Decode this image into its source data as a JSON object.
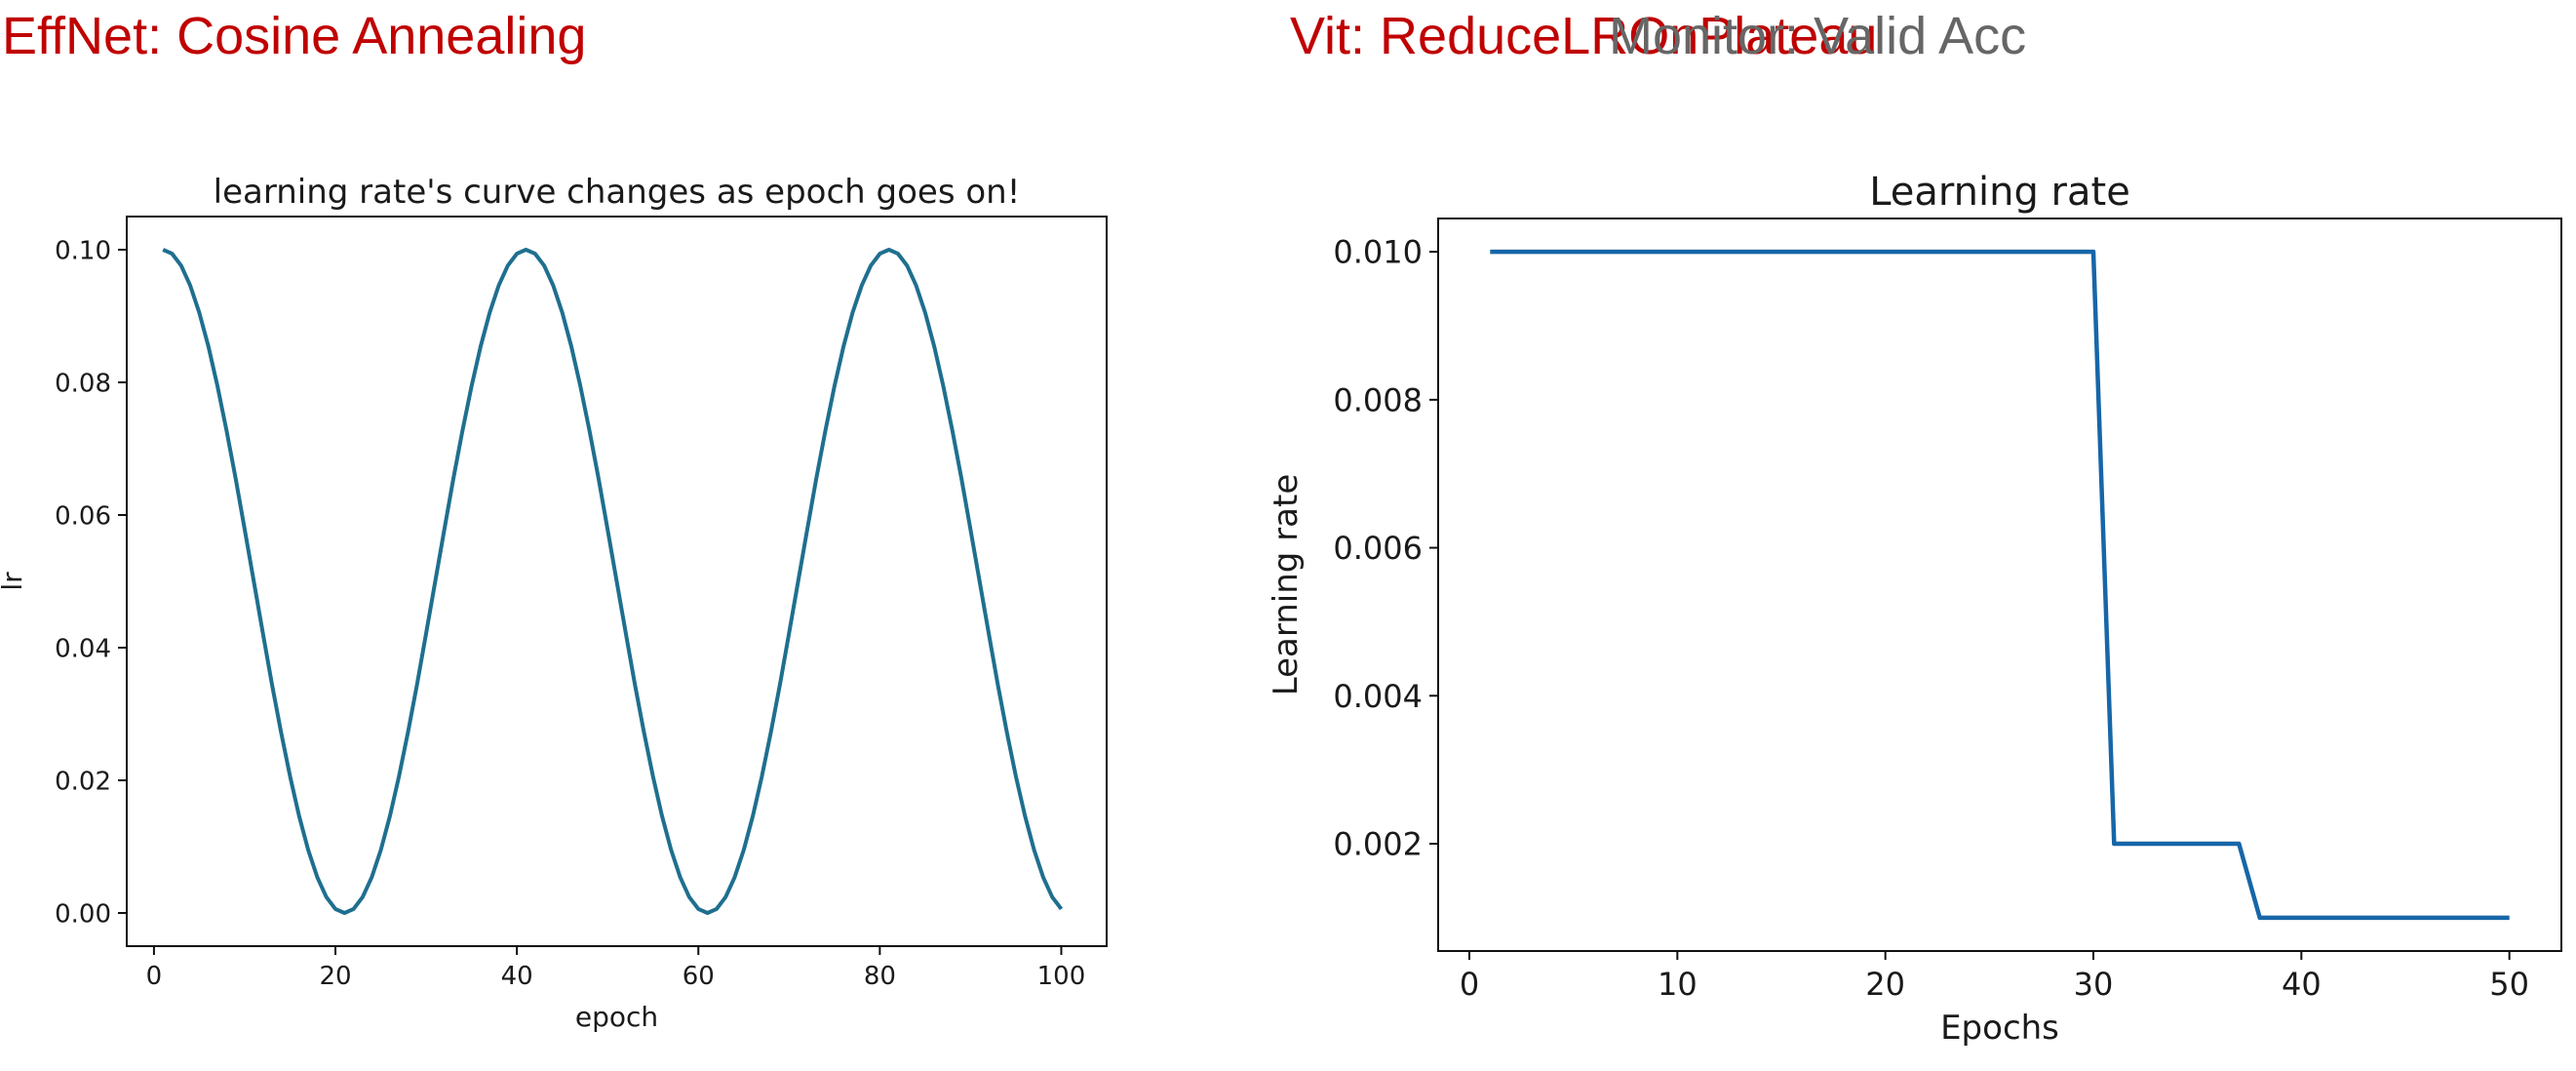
{
  "headings": {
    "left": "EffNet: Cosine Annealing",
    "right_main": "Vit: ReduceLROnPlateau",
    "right_sub": "Monitor: Valid Acc"
  },
  "colors": {
    "heading_red": "#c00000",
    "heading_gray": "#666666",
    "line_left": "#1f6f8f",
    "line_right": "#1766a8"
  },
  "chart_data": [
    {
      "type": "line",
      "title": "learning rate's curve changes as epoch goes on!",
      "xlabel": "epoch",
      "ylabel": "lr",
      "xlim": [
        -3,
        105
      ],
      "ylim": [
        -0.005,
        0.105
      ],
      "xticks": [
        0,
        20,
        40,
        60,
        80,
        100
      ],
      "xtick_labels": [
        "0",
        "20",
        "40",
        "60",
        "80",
        "100"
      ],
      "yticks": [
        0.0,
        0.02,
        0.04,
        0.06,
        0.08,
        0.1
      ],
      "ytick_labels": [
        "0.00",
        "0.02",
        "0.04",
        "0.06",
        "0.08",
        "0.10"
      ],
      "grid": false,
      "series": [
        {
          "x": [
            1,
            2,
            3,
            4,
            5,
            6,
            7,
            8,
            9,
            10,
            11,
            12,
            13,
            14,
            15,
            16,
            17,
            18,
            19,
            20,
            21,
            22,
            23,
            24,
            25,
            26,
            27,
            28,
            29,
            30,
            31,
            32,
            33,
            34,
            35,
            36,
            37,
            38,
            39,
            40,
            41,
            42,
            43,
            44,
            45,
            46,
            47,
            48,
            49,
            50,
            51,
            52,
            53,
            54,
            55,
            56,
            57,
            58,
            59,
            60,
            61,
            62,
            63,
            64,
            65,
            66,
            67,
            68,
            69,
            70,
            71,
            72,
            73,
            74,
            75,
            76,
            77,
            78,
            79,
            80,
            81,
            82,
            83,
            84,
            85,
            86,
            87,
            88,
            89,
            90,
            91,
            92,
            93,
            94,
            95,
            96,
            97,
            98,
            99,
            100
          ],
          "y": [
            0.1,
            0.0994,
            0.0976,
            0.0946,
            0.0905,
            0.0854,
            0.0794,
            0.0727,
            0.0655,
            0.0578,
            0.05,
            0.0422,
            0.0345,
            0.0273,
            0.0206,
            0.0146,
            0.0095,
            0.0054,
            0.0024,
            0.0006,
            0.0,
            0.0006,
            0.0024,
            0.0054,
            0.0095,
            0.0146,
            0.0206,
            0.0273,
            0.0345,
            0.0422,
            0.05,
            0.0578,
            0.0655,
            0.0727,
            0.0794,
            0.0854,
            0.0905,
            0.0946,
            0.0976,
            0.0994,
            0.1,
            0.0994,
            0.0976,
            0.0946,
            0.0905,
            0.0854,
            0.0794,
            0.0727,
            0.0655,
            0.0578,
            0.05,
            0.0422,
            0.0345,
            0.0273,
            0.0206,
            0.0146,
            0.0095,
            0.0054,
            0.0024,
            0.0006,
            0.0,
            0.0006,
            0.0024,
            0.0054,
            0.0095,
            0.0146,
            0.0206,
            0.0273,
            0.0345,
            0.0422,
            0.05,
            0.0578,
            0.0655,
            0.0727,
            0.0794,
            0.0854,
            0.0905,
            0.0946,
            0.0976,
            0.0994,
            0.1,
            0.0994,
            0.0976,
            0.0946,
            0.0905,
            0.0854,
            0.0794,
            0.0727,
            0.0655,
            0.0578,
            0.05,
            0.0422,
            0.0345,
            0.0273,
            0.0206,
            0.0146,
            0.0095,
            0.0054,
            0.0024,
            0.0006
          ]
        }
      ]
    },
    {
      "type": "line",
      "title": "Learning rate",
      "xlabel": "Epochs",
      "ylabel": "Learning rate",
      "xlim": [
        -1.5,
        52.5
      ],
      "ylim": [
        0.00055,
        0.01045
      ],
      "xticks": [
        0,
        10,
        20,
        30,
        40,
        50
      ],
      "xtick_labels": [
        "0",
        "10",
        "20",
        "30",
        "40",
        "50"
      ],
      "yticks": [
        0.002,
        0.004,
        0.006,
        0.008,
        0.01
      ],
      "ytick_labels": [
        "0.002",
        "0.004",
        "0.006",
        "0.008",
        "0.010"
      ],
      "grid": false,
      "series": [
        {
          "x": [
            1,
            30,
            31,
            37,
            38,
            50
          ],
          "y": [
            0.01,
            0.01,
            0.002,
            0.002,
            0.001,
            0.001
          ]
        }
      ]
    }
  ]
}
